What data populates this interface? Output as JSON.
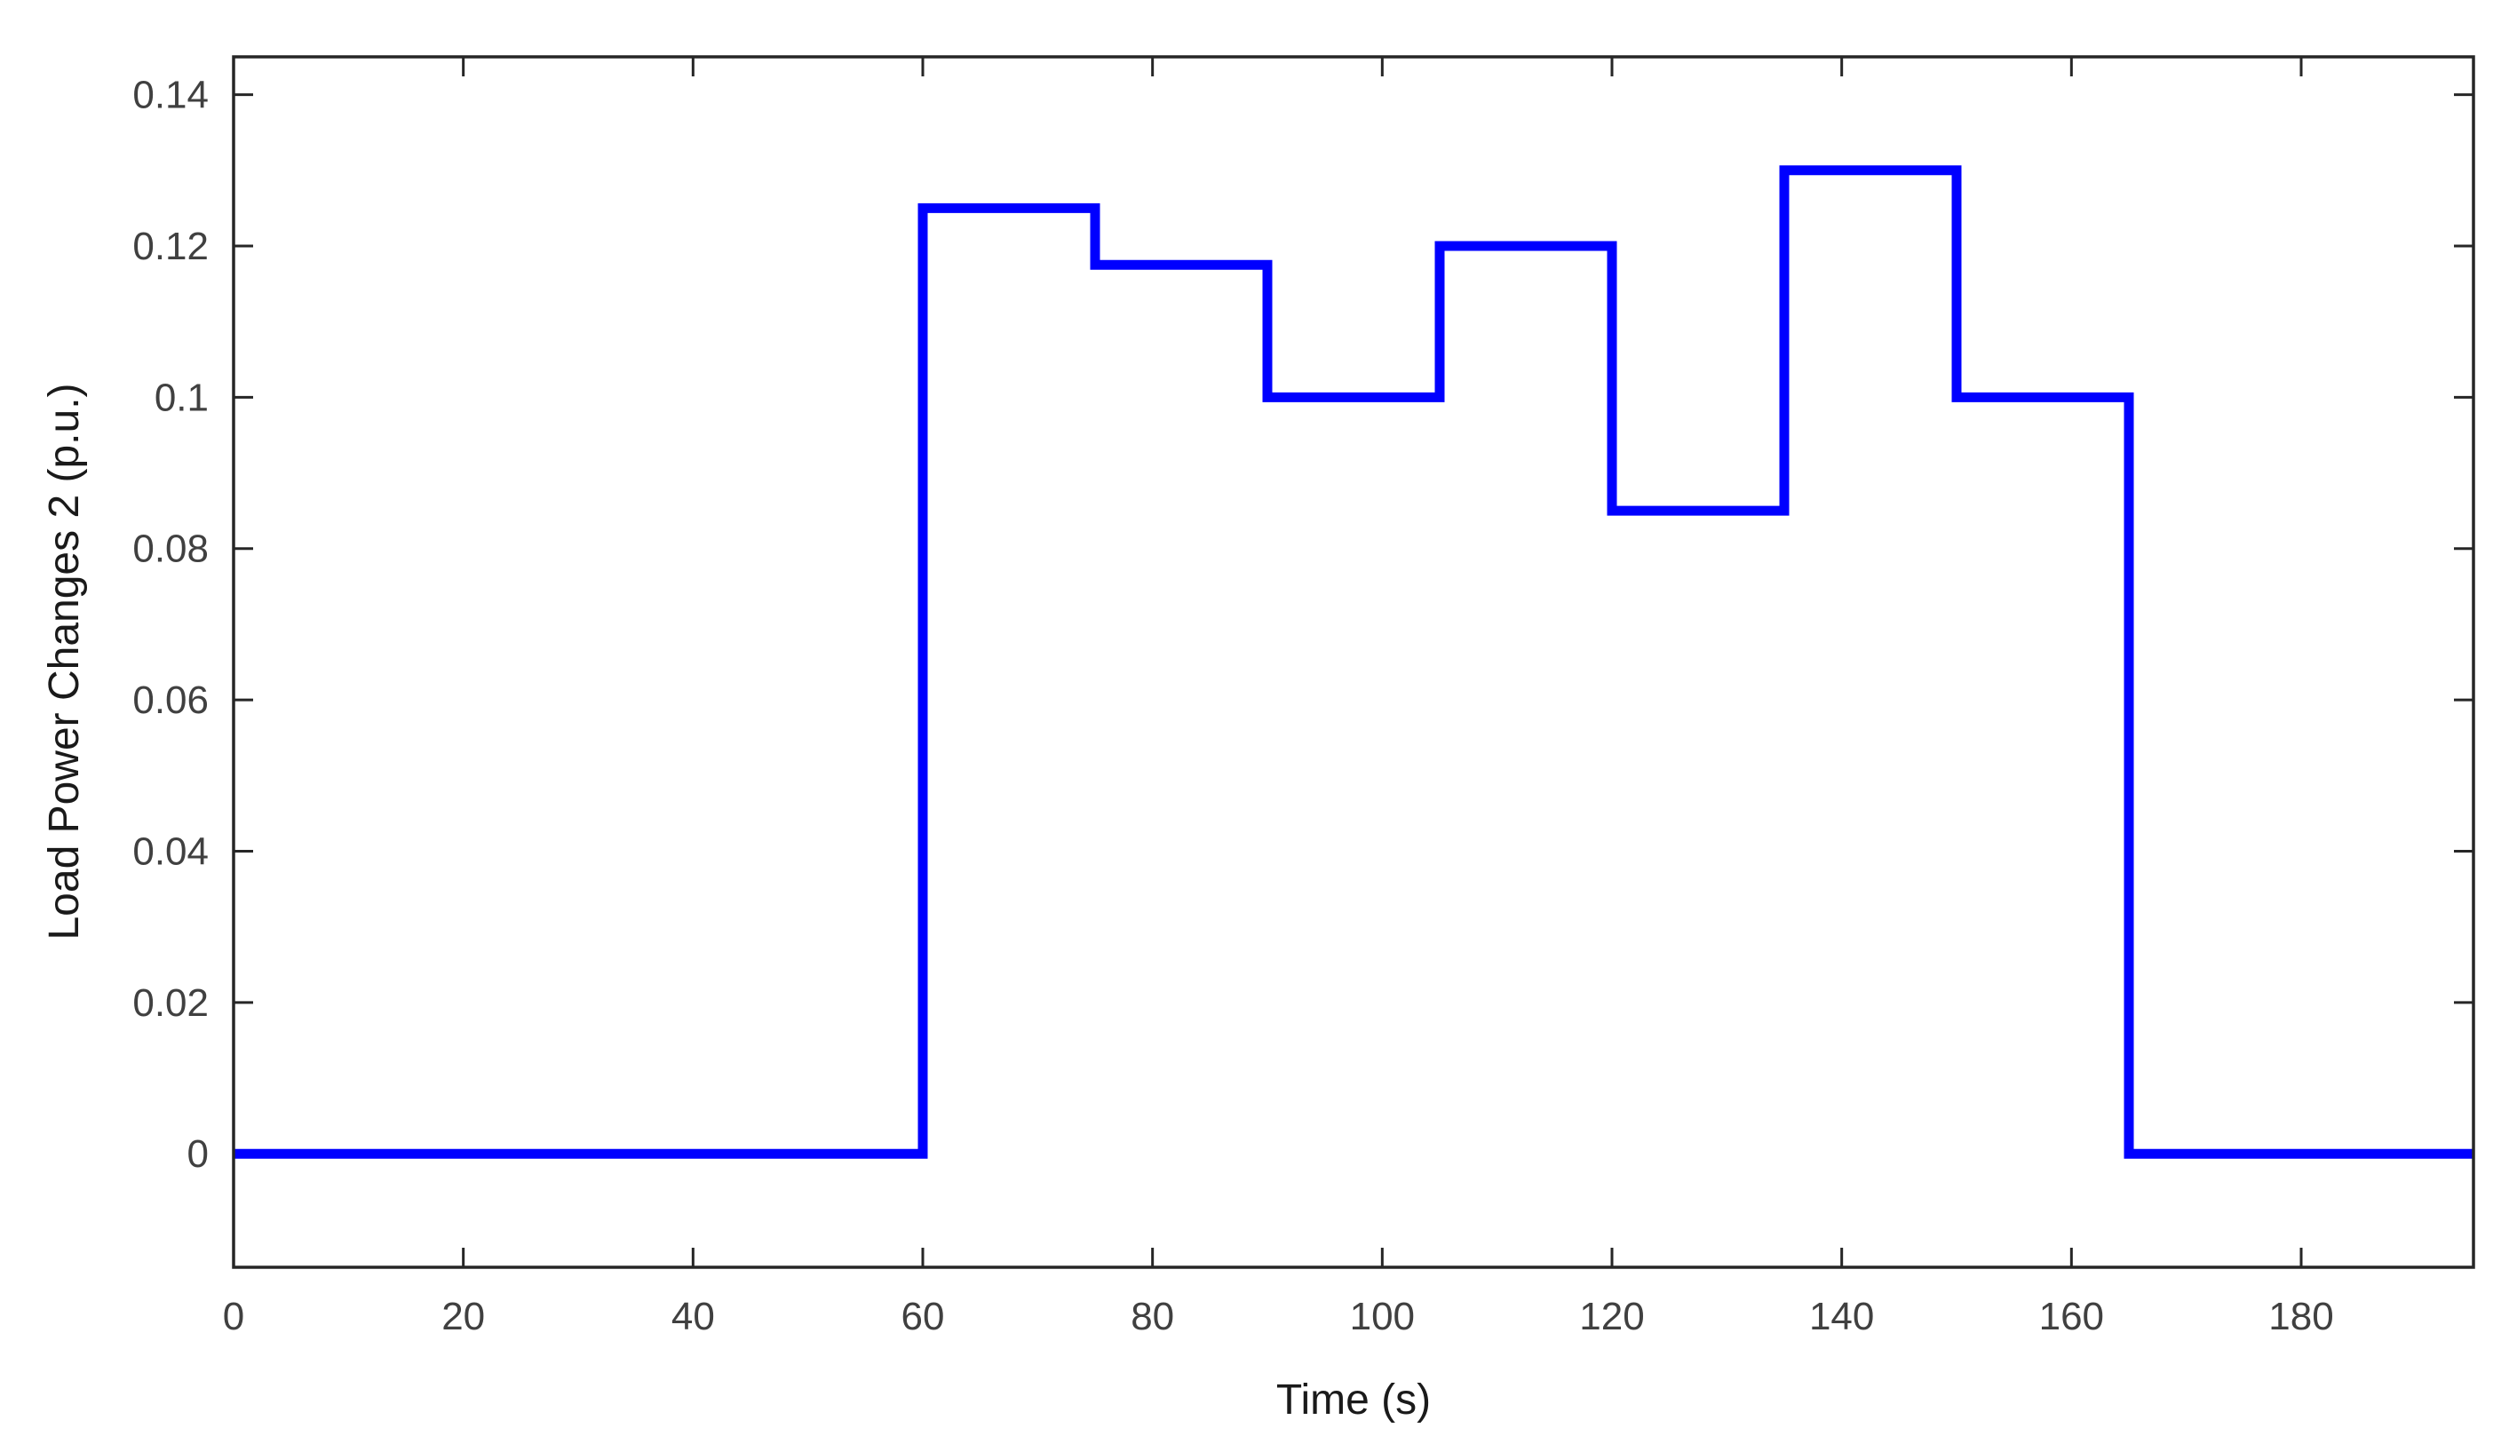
{
  "chart_data": {
    "type": "line",
    "title": "",
    "xlabel": "Time (s)",
    "ylabel": "Load Power Changes 2 (p.u.)",
    "xlim": [
      0,
      195
    ],
    "ylim": [
      -0.015,
      0.145
    ],
    "xticks": [
      0,
      20,
      40,
      60,
      80,
      100,
      120,
      140,
      160,
      180
    ],
    "xtick_labels": [
      "0",
      "20",
      "40",
      "60",
      "80",
      "100",
      "120",
      "140",
      "160",
      "180"
    ],
    "yticks": [
      0,
      0.02,
      0.04,
      0.06,
      0.08,
      0.1,
      0.12,
      0.14
    ],
    "ytick_labels": [
      "0",
      "0.02",
      "0.04",
      "0.06",
      "0.08",
      "0.1",
      "0.12",
      "0.14"
    ],
    "grid": false,
    "legend": "none",
    "line_color": "#0000ff",
    "series": [
      {
        "style": "step",
        "x": [
          0,
          60,
          60,
          75,
          75,
          90,
          90,
          105,
          105,
          120,
          120,
          135,
          135,
          150,
          150,
          165,
          165,
          195
        ],
        "y": [
          0,
          0,
          0.125,
          0.125,
          0.1175,
          0.1175,
          0.1,
          0.1,
          0.12,
          0.12,
          0.085,
          0.085,
          0.13,
          0.13,
          0.1,
          0.1,
          0,
          0
        ]
      }
    ]
  }
}
